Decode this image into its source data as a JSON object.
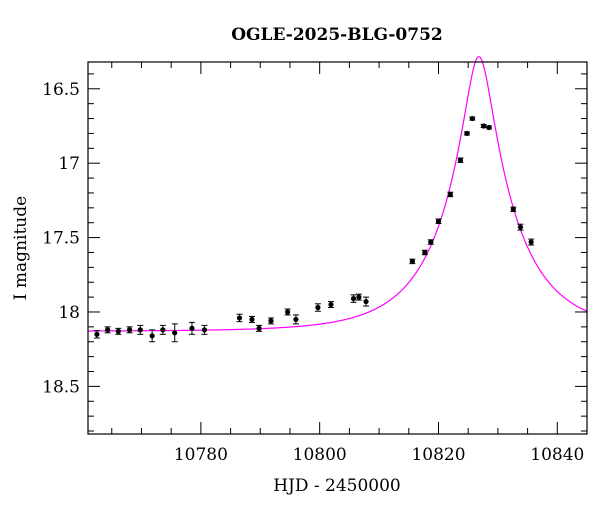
{
  "chart_data": {
    "type": "scatter",
    "title": "OGLE-2025-BLG-0752",
    "xlabel": "HJD - 2450000",
    "ylabel": "I magnitude",
    "xlim": [
      10761,
      10845
    ],
    "ylim": [
      18.82,
      16.32
    ],
    "y_inverted": true,
    "xticks": [
      10780,
      10800,
      10820,
      10840
    ],
    "yticks": [
      16.5,
      17,
      17.5,
      18,
      18.5
    ],
    "grid": false,
    "colors": {
      "points": "#000000",
      "model": "#ff00ff"
    },
    "series": [
      {
        "points": [
          {
            "x": 10762.5,
            "y": 18.15,
            "err": 0.025
          },
          {
            "x": 10764.3,
            "y": 18.12,
            "err": 0.02
          },
          {
            "x": 10766.1,
            "y": 18.13,
            "err": 0.02
          },
          {
            "x": 10768.0,
            "y": 18.12,
            "err": 0.02
          },
          {
            "x": 10769.8,
            "y": 18.12,
            "err": 0.03
          },
          {
            "x": 10771.8,
            "y": 18.16,
            "err": 0.04
          },
          {
            "x": 10773.6,
            "y": 18.12,
            "err": 0.03
          },
          {
            "x": 10775.6,
            "y": 18.14,
            "err": 0.06
          },
          {
            "x": 10778.5,
            "y": 18.11,
            "err": 0.04
          },
          {
            "x": 10780.6,
            "y": 18.12,
            "err": 0.03
          },
          {
            "x": 10786.5,
            "y": 18.04,
            "err": 0.025
          },
          {
            "x": 10788.6,
            "y": 18.05,
            "err": 0.02
          },
          {
            "x": 10789.8,
            "y": 18.11,
            "err": 0.02
          },
          {
            "x": 10791.8,
            "y": 18.06,
            "err": 0.02
          },
          {
            "x": 10794.6,
            "y": 18.0,
            "err": 0.02
          },
          {
            "x": 10796.0,
            "y": 18.05,
            "err": 0.03
          },
          {
            "x": 10799.7,
            "y": 17.97,
            "err": 0.025
          },
          {
            "x": 10801.9,
            "y": 17.95,
            "err": 0.02
          },
          {
            "x": 10805.7,
            "y": 17.91,
            "err": 0.025
          },
          {
            "x": 10806.6,
            "y": 17.9,
            "err": 0.02
          },
          {
            "x": 10807.8,
            "y": 17.93,
            "err": 0.03
          },
          {
            "x": 10815.6,
            "y": 17.66,
            "err": 0.015
          },
          {
            "x": 10817.7,
            "y": 17.6,
            "err": 0.015
          },
          {
            "x": 10818.7,
            "y": 17.53,
            "err": 0.015
          },
          {
            "x": 10820.0,
            "y": 17.39,
            "err": 0.015
          },
          {
            "x": 10822.0,
            "y": 17.21,
            "err": 0.015
          },
          {
            "x": 10823.7,
            "y": 16.98,
            "err": 0.015
          },
          {
            "x": 10824.8,
            "y": 16.8,
            "err": 0.01
          },
          {
            "x": 10825.7,
            "y": 16.7,
            "err": 0.01
          },
          {
            "x": 10827.6,
            "y": 16.75,
            "err": 0.01
          },
          {
            "x": 10828.5,
            "y": 16.76,
            "err": 0.01
          },
          {
            "x": 10832.6,
            "y": 17.31,
            "err": 0.015
          },
          {
            "x": 10833.8,
            "y": 17.43,
            "err": 0.02
          },
          {
            "x": 10835.6,
            "y": 17.53,
            "err": 0.02
          }
        ]
      }
    ],
    "model": {
      "type": "microlensing-paczynski",
      "t0": 10826.8,
      "tE": 12.2,
      "u0": 0.185,
      "baseline_mag": 18.13
    }
  }
}
